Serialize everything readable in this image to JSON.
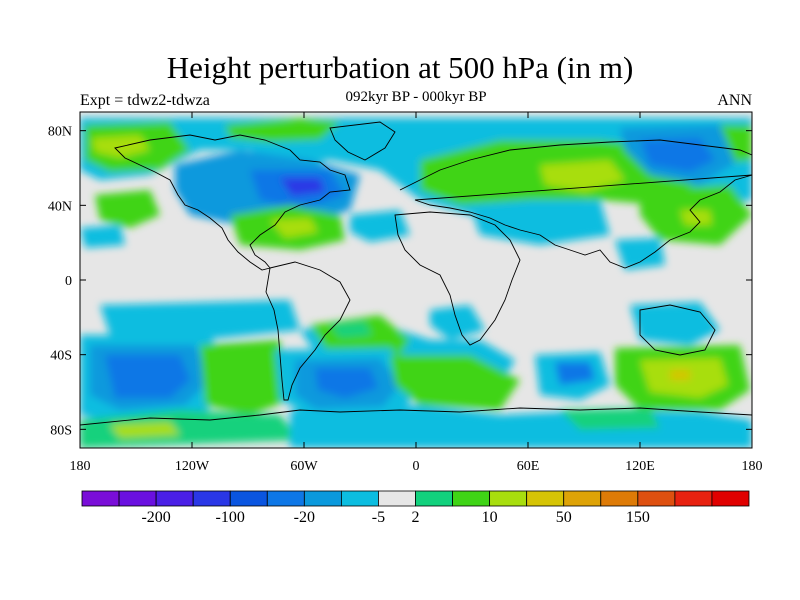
{
  "title": "Height perturbation at 500 hPa (in m)",
  "subtitle": "092kyr BP - 000kyr BP",
  "left_label": "Expt = tdwz2-tdwza",
  "right_label": "ANN",
  "map": {
    "lat_ticks": [
      {
        "lat": 80,
        "label": "80N"
      },
      {
        "lat": 40,
        "label": "40N"
      },
      {
        "lat": 0,
        "label": "0"
      },
      {
        "lat": -40,
        "label": "40S"
      },
      {
        "lat": -80,
        "label": "80S"
      }
    ],
    "lon_ticks": [
      {
        "lon": -180,
        "label": "180"
      },
      {
        "lon": -120,
        "label": "120W"
      },
      {
        "lon": -60,
        "label": "60W"
      },
      {
        "lon": 0,
        "label": "0"
      },
      {
        "lon": 60,
        "label": "60E"
      },
      {
        "lon": 120,
        "label": "120E"
      },
      {
        "lon": 180,
        "label": "180"
      }
    ],
    "lat_range": [
      -90,
      90
    ],
    "lon_range": [
      -180,
      180
    ]
  },
  "colorbar": {
    "colors": [
      "#7a0ed8",
      "#6a10e0",
      "#4a1fe6",
      "#2a37e6",
      "#0a55e0",
      "#0e77e6",
      "#0a99dd",
      "#0cbde0",
      "#e6e6e6",
      "#12d17d",
      "#3fd416",
      "#a8de0e",
      "#d6c405",
      "#dea307",
      "#de7b07",
      "#de5010",
      "#e82210",
      "#e00000"
    ],
    "labels": [
      {
        "index": 2,
        "text": "-200"
      },
      {
        "index": 4,
        "text": "-100"
      },
      {
        "index": 6,
        "text": "-20"
      },
      {
        "index": 8,
        "text": "-5"
      },
      {
        "index": 9,
        "text": "2"
      },
      {
        "index": 11,
        "text": "10"
      },
      {
        "index": 13,
        "text": "50"
      },
      {
        "index": 15,
        "text": "150"
      }
    ]
  },
  "field_colors": {
    "neutral": "#e6e6e6",
    "cyan": "#0cbde0",
    "lightblue": "#0a99dd",
    "blue": "#0e77e6",
    "teal": "#12d17d",
    "green": "#3fd416",
    "yellowgreen": "#a8de0e",
    "land_line": "#000000"
  }
}
